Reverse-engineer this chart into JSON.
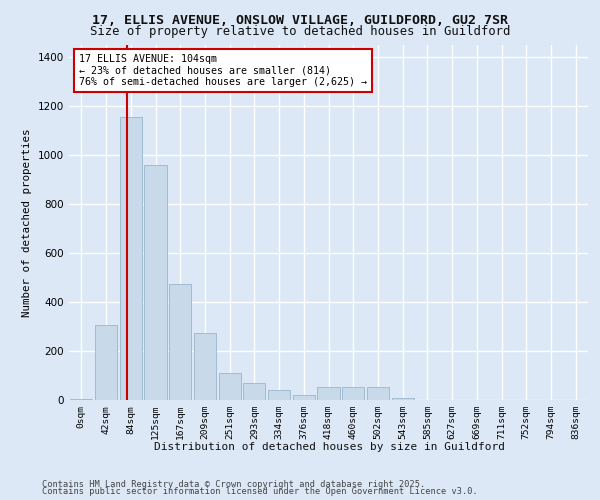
{
  "title_line1": "17, ELLIS AVENUE, ONSLOW VILLAGE, GUILDFORD, GU2 7SR",
  "title_line2": "Size of property relative to detached houses in Guildford",
  "xlabel": "Distribution of detached houses by size in Guildford",
  "ylabel": "Number of detached properties",
  "bar_color": "#c8d9ea",
  "bar_edgecolor": "#9ab5cc",
  "annotation_text": "17 ELLIS AVENUE: 104sqm\n← 23% of detached houses are smaller (814)\n76% of semi-detached houses are larger (2,625) →",
  "vline_color": "#cc0000",
  "footer_line1": "Contains HM Land Registry data © Crown copyright and database right 2025.",
  "footer_line2": "Contains public sector information licensed under the Open Government Licence v3.0.",
  "categories": [
    "0sqm",
    "42sqm",
    "84sqm",
    "125sqm",
    "167sqm",
    "209sqm",
    "251sqm",
    "293sqm",
    "334sqm",
    "376sqm",
    "418sqm",
    "460sqm",
    "502sqm",
    "543sqm",
    "585sqm",
    "627sqm",
    "669sqm",
    "711sqm",
    "752sqm",
    "794sqm",
    "836sqm"
  ],
  "values": [
    3,
    308,
    1155,
    960,
    475,
    275,
    110,
    68,
    42,
    22,
    52,
    55,
    55,
    8,
    1,
    1,
    1,
    1,
    1,
    1,
    1
  ],
  "ylim_max": 1450,
  "yticks": [
    0,
    200,
    400,
    600,
    800,
    1000,
    1200,
    1400
  ],
  "bg_color": "#dce8f5",
  "grid_color": "#ffffff",
  "annotation_box_edgecolor": "#cc0000",
  "annotation_box_facecolor": "#ffffff",
  "vline_xindex": 1.85
}
